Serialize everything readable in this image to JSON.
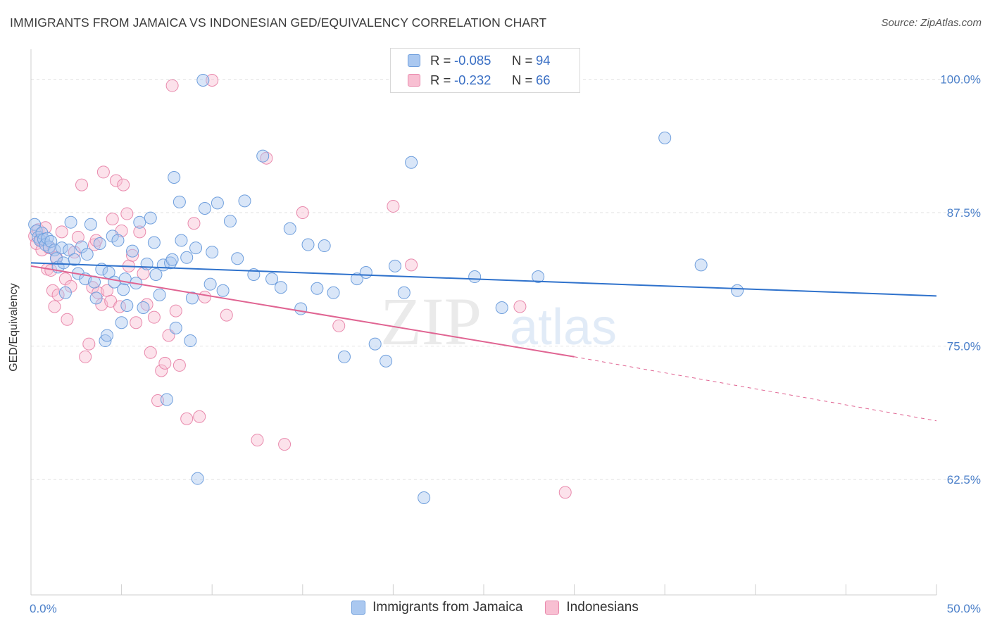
{
  "title": "IMMIGRANTS FROM JAMAICA VS INDONESIAN GED/EQUIVALENCY CORRELATION CHART",
  "source": "Source: ZipAtlas.com",
  "watermark": {
    "zip": "ZIP",
    "atlas": "atlas"
  },
  "legend": {
    "r_label": "R =",
    "n_label": "N =",
    "rows": [
      {
        "r": "-0.085",
        "n": "94",
        "fill": "#aac8f0",
        "stroke": "#6f9fdd"
      },
      {
        "r": "-0.232",
        "n": "66",
        "fill": "#f8bfd2",
        "stroke": "#e98aad"
      }
    ]
  },
  "chart_data": {
    "type": "scatter",
    "xlabel": "",
    "ylabel": "GED/Equivalency",
    "xlim": [
      0,
      50
    ],
    "ylim": [
      51.7,
      102.8
    ],
    "x_tick_labels": [
      {
        "value": 0,
        "label": "0.0%"
      },
      {
        "value": 50,
        "label": "50.0%"
      }
    ],
    "y_tick_labels": [
      {
        "value": 100,
        "label": "100.0%"
      },
      {
        "value": 87.5,
        "label": "87.5%"
      },
      {
        "value": 75,
        "label": "75.0%"
      },
      {
        "value": 62.5,
        "label": "62.5%"
      }
    ],
    "grid": true,
    "legend_position": "bottom",
    "series": [
      {
        "name": "Immigrants from Jamaica",
        "color": "#aac8f0",
        "stroke": "#6f9fdd",
        "line_color": "#2f72cc",
        "trend": {
          "x0": 0,
          "y0": 82.8,
          "x1": 50,
          "y1": 79.7
        },
        "points": [
          [
            0.2,
            86.4
          ],
          [
            0.3,
            85.8
          ],
          [
            0.4,
            85.2
          ],
          [
            0.5,
            84.9
          ],
          [
            0.6,
            85.6
          ],
          [
            0.7,
            85.0
          ],
          [
            0.8,
            84.5
          ],
          [
            0.9,
            85.1
          ],
          [
            1.0,
            84.3
          ],
          [
            1.1,
            84.8
          ],
          [
            1.3,
            84.0
          ],
          [
            1.4,
            83.2
          ],
          [
            1.5,
            82.4
          ],
          [
            1.7,
            84.2
          ],
          [
            1.8,
            82.8
          ],
          [
            1.9,
            80.0
          ],
          [
            2.1,
            84.0
          ],
          [
            2.2,
            86.6
          ],
          [
            2.4,
            83.1
          ],
          [
            2.6,
            81.8
          ],
          [
            2.8,
            84.3
          ],
          [
            3.0,
            81.3
          ],
          [
            3.1,
            83.6
          ],
          [
            3.3,
            86.4
          ],
          [
            3.5,
            81.0
          ],
          [
            3.6,
            79.5
          ],
          [
            3.8,
            84.6
          ],
          [
            3.9,
            82.2
          ],
          [
            4.1,
            75.5
          ],
          [
            4.2,
            76.0
          ],
          [
            4.3,
            81.9
          ],
          [
            4.5,
            85.3
          ],
          [
            4.6,
            81.0
          ],
          [
            4.8,
            84.9
          ],
          [
            5.0,
            77.2
          ],
          [
            5.1,
            80.3
          ],
          [
            5.2,
            81.3
          ],
          [
            5.3,
            78.8
          ],
          [
            5.6,
            83.9
          ],
          [
            5.8,
            80.9
          ],
          [
            6.0,
            86.6
          ],
          [
            6.2,
            78.6
          ],
          [
            6.4,
            82.7
          ],
          [
            6.6,
            87.0
          ],
          [
            6.8,
            84.7
          ],
          [
            6.9,
            81.7
          ],
          [
            7.1,
            79.8
          ],
          [
            7.3,
            82.6
          ],
          [
            7.5,
            70.0
          ],
          [
            7.7,
            82.8
          ],
          [
            7.8,
            83.1
          ],
          [
            7.9,
            90.8
          ],
          [
            8.0,
            76.7
          ],
          [
            8.2,
            88.5
          ],
          [
            8.3,
            84.9
          ],
          [
            8.6,
            83.3
          ],
          [
            8.8,
            75.5
          ],
          [
            8.9,
            79.5
          ],
          [
            9.1,
            84.2
          ],
          [
            9.2,
            62.6
          ],
          [
            9.6,
            87.9
          ],
          [
            9.9,
            80.8
          ],
          [
            10.3,
            88.4
          ],
          [
            10.6,
            80.2
          ],
          [
            11.0,
            86.7
          ],
          [
            11.4,
            83.2
          ],
          [
            11.8,
            88.6
          ],
          [
            12.3,
            81.7
          ],
          [
            12.8,
            92.8
          ],
          [
            13.3,
            81.3
          ],
          [
            13.8,
            80.5
          ],
          [
            14.3,
            86.0
          ],
          [
            14.9,
            78.5
          ],
          [
            15.3,
            84.5
          ],
          [
            15.8,
            80.4
          ],
          [
            16.2,
            84.4
          ],
          [
            16.7,
            80.0
          ],
          [
            17.3,
            74.0
          ],
          [
            18.0,
            81.3
          ],
          [
            18.5,
            81.9
          ],
          [
            19.0,
            75.2
          ],
          [
            19.6,
            73.6
          ],
          [
            20.1,
            82.5
          ],
          [
            20.6,
            80.0
          ],
          [
            21.0,
            92.2
          ],
          [
            21.7,
            60.8
          ],
          [
            24.5,
            81.5
          ],
          [
            26.0,
            78.6
          ],
          [
            28.0,
            81.5
          ],
          [
            35.0,
            94.5
          ],
          [
            37.0,
            82.6
          ],
          [
            39.0,
            80.2
          ],
          [
            9.5,
            99.9
          ],
          [
            10.0,
            83.8
          ]
        ]
      },
      {
        "name": "Indonesians",
        "color": "#f8bfd2",
        "stroke": "#e98aad",
        "line_color": "#e06492",
        "trend": {
          "x0": 0,
          "y0": 82.5,
          "x1": 30,
          "y1": 74.0
        },
        "trend_dashed": {
          "x0": 30,
          "y0": 74.0,
          "x1": 50,
          "y1": 68.0
        },
        "points": [
          [
            0.2,
            85.3
          ],
          [
            0.3,
            84.6
          ],
          [
            0.4,
            85.9
          ],
          [
            0.5,
            85.0
          ],
          [
            0.6,
            84.0
          ],
          [
            0.8,
            86.1
          ],
          [
            0.9,
            82.2
          ],
          [
            1.1,
            82.1
          ],
          [
            1.2,
            80.2
          ],
          [
            1.3,
            78.7
          ],
          [
            1.4,
            83.3
          ],
          [
            1.5,
            79.8
          ],
          [
            1.7,
            85.7
          ],
          [
            1.9,
            81.3
          ],
          [
            2.0,
            77.5
          ],
          [
            2.2,
            80.6
          ],
          [
            2.4,
            83.8
          ],
          [
            2.6,
            85.2
          ],
          [
            2.8,
            90.1
          ],
          [
            3.0,
            74.0
          ],
          [
            3.2,
            75.2
          ],
          [
            3.4,
            80.5
          ],
          [
            3.5,
            84.5
          ],
          [
            3.7,
            80.0
          ],
          [
            3.9,
            78.9
          ],
          [
            4.0,
            91.3
          ],
          [
            4.2,
            80.2
          ],
          [
            4.4,
            79.2
          ],
          [
            4.5,
            86.9
          ],
          [
            4.7,
            90.5
          ],
          [
            4.9,
            78.7
          ],
          [
            5.0,
            85.8
          ],
          [
            5.1,
            90.1
          ],
          [
            5.3,
            87.4
          ],
          [
            5.4,
            82.5
          ],
          [
            5.6,
            83.5
          ],
          [
            5.8,
            77.2
          ],
          [
            6.0,
            85.7
          ],
          [
            6.2,
            81.8
          ],
          [
            6.4,
            78.9
          ],
          [
            6.6,
            74.4
          ],
          [
            6.8,
            77.7
          ],
          [
            7.0,
            69.9
          ],
          [
            7.2,
            72.7
          ],
          [
            7.4,
            73.4
          ],
          [
            7.6,
            76.0
          ],
          [
            7.8,
            99.4
          ],
          [
            8.0,
            78.3
          ],
          [
            8.2,
            73.2
          ],
          [
            8.6,
            68.2
          ],
          [
            9.0,
            86.5
          ],
          [
            9.3,
            68.4
          ],
          [
            9.6,
            79.6
          ],
          [
            10.0,
            99.9
          ],
          [
            10.8,
            77.9
          ],
          [
            12.5,
            66.2
          ],
          [
            13.0,
            92.6
          ],
          [
            14.0,
            65.8
          ],
          [
            15.0,
            87.5
          ],
          [
            17.0,
            76.9
          ],
          [
            20.0,
            88.1
          ],
          [
            21.0,
            82.6
          ],
          [
            27.0,
            78.7
          ],
          [
            29.5,
            61.3
          ],
          [
            3.6,
            84.9
          ],
          [
            1.0,
            84.2
          ]
        ]
      }
    ]
  }
}
